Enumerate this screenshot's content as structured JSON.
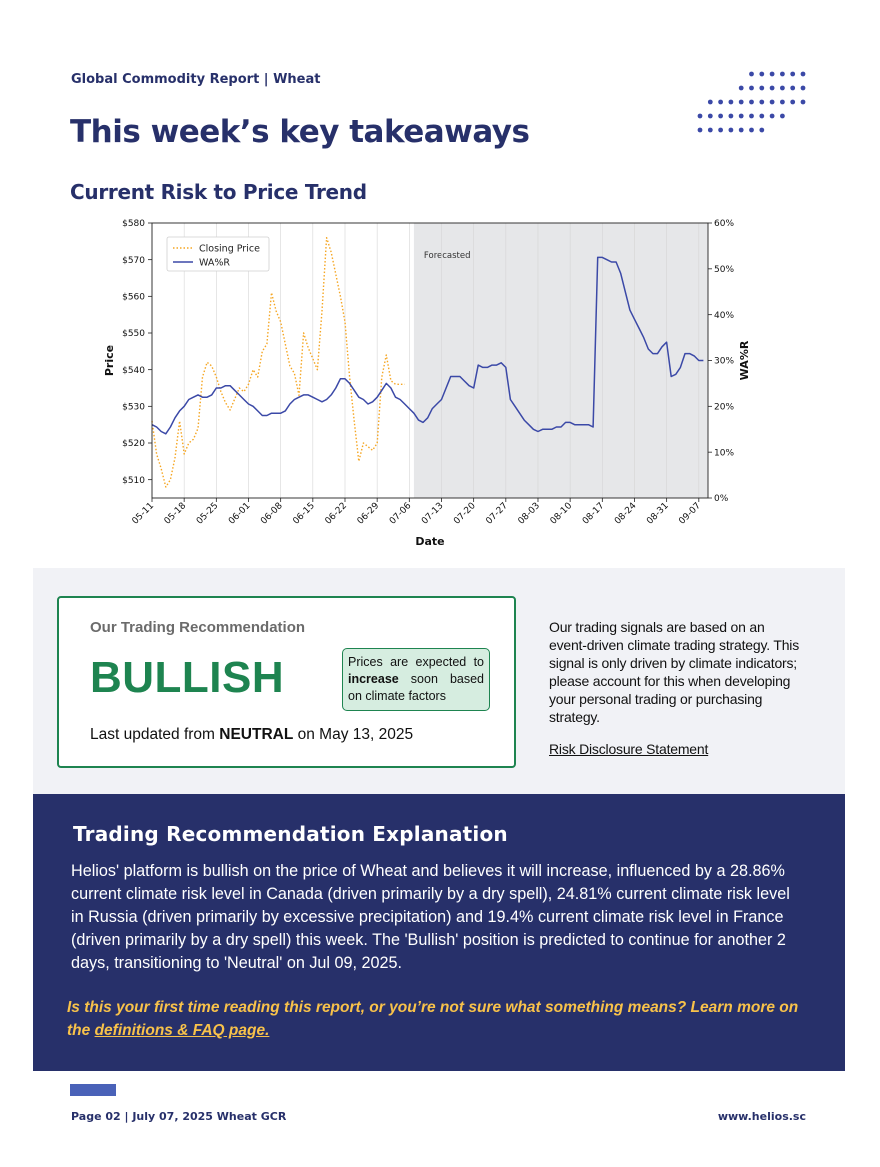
{
  "header": {
    "label": "Global Commodity Report | Wheat"
  },
  "page_title": "This week’s key takeaways",
  "section_title": "Current Risk to Price Trend",
  "colors": {
    "navy": "#27306a",
    "green": "#1e8450",
    "orange": "#f5a623",
    "line_blue": "#3b49a7",
    "forecast_bg": "#e6e7e9",
    "accent_yellow": "#f8c24a"
  },
  "chart_data": {
    "type": "line",
    "xlabel": "Date",
    "ylabel": "Price",
    "y2label": "WA%R",
    "ylim": [
      505,
      580
    ],
    "y2lim": [
      0,
      60
    ],
    "yticks": [
      "$510",
      "$520",
      "$530",
      "$540",
      "$550",
      "$560",
      "$570",
      "$580"
    ],
    "y2ticks": [
      "0%",
      "10%",
      "20%",
      "30%",
      "40%",
      "50%",
      "60%"
    ],
    "xticks": [
      "05-11",
      "05-18",
      "05-25",
      "06-01",
      "06-08",
      "06-15",
      "06-22",
      "06-29",
      "07-06",
      "07-13",
      "07-20",
      "07-27",
      "08-03",
      "08-10",
      "08-17",
      "08-24",
      "08-31",
      "09-07"
    ],
    "legend": {
      "placement": "top-left",
      "entries": [
        "Closing Price",
        "WA%R"
      ]
    },
    "forecast_label": "Forecasted",
    "forecast_start": "07-07",
    "x_start": "05-11",
    "x_end": "09-09",
    "series": [
      {
        "name": "Closing Price",
        "axis": "left",
        "style": "dotted",
        "color": "#f5a623",
        "points": [
          [
            "05-11",
            526
          ],
          [
            "05-12",
            517
          ],
          [
            "05-13",
            513
          ],
          [
            "05-14",
            508
          ],
          [
            "05-15",
            510
          ],
          [
            "05-16",
            516
          ],
          [
            "05-17",
            526
          ],
          [
            "05-18",
            517
          ],
          [
            "05-19",
            520
          ],
          [
            "05-20",
            521
          ],
          [
            "05-21",
            524
          ],
          [
            "05-22",
            538
          ],
          [
            "05-23",
            542
          ],
          [
            "05-24",
            541
          ],
          [
            "05-25",
            538
          ],
          [
            "05-26",
            534
          ],
          [
            "05-27",
            531
          ],
          [
            "05-28",
            529
          ],
          [
            "05-29",
            532
          ],
          [
            "05-30",
            535
          ],
          [
            "05-31",
            534
          ],
          [
            "06-01",
            536
          ],
          [
            "06-02",
            540
          ],
          [
            "06-03",
            538
          ],
          [
            "06-04",
            545
          ],
          [
            "06-05",
            547
          ],
          [
            "06-06",
            561
          ],
          [
            "06-07",
            556
          ],
          [
            "06-08",
            553
          ],
          [
            "06-09",
            547
          ],
          [
            "06-10",
            541
          ],
          [
            "06-11",
            539
          ],
          [
            "06-12",
            533
          ],
          [
            "06-13",
            550
          ],
          [
            "06-14",
            546
          ],
          [
            "06-15",
            543
          ],
          [
            "06-16",
            540
          ],
          [
            "06-17",
            556
          ],
          [
            "06-18",
            576
          ],
          [
            "06-19",
            572
          ],
          [
            "06-20",
            566
          ],
          [
            "06-21",
            560
          ],
          [
            "06-22",
            553
          ],
          [
            "06-23",
            538
          ],
          [
            "06-24",
            526
          ],
          [
            "06-25",
            515
          ],
          [
            "06-26",
            520
          ],
          [
            "06-27",
            519
          ],
          [
            "06-28",
            518
          ],
          [
            "06-29",
            520
          ],
          [
            "06-30",
            538
          ],
          [
            "07-01",
            544
          ],
          [
            "07-02",
            537
          ],
          [
            "07-03",
            536
          ],
          [
            "07-04",
            536
          ],
          [
            "07-05",
            536
          ]
        ]
      },
      {
        "name": "WA%R",
        "axis": "right",
        "style": "solid",
        "color": "#3b49a7",
        "points": [
          [
            "05-11",
            16
          ],
          [
            "05-12",
            15.5
          ],
          [
            "05-13",
            14.5
          ],
          [
            "05-14",
            14
          ],
          [
            "05-15",
            15.5
          ],
          [
            "05-16",
            17.5
          ],
          [
            "05-17",
            19
          ],
          [
            "05-18",
            20
          ],
          [
            "05-19",
            21.5
          ],
          [
            "05-20",
            22
          ],
          [
            "05-21",
            22.5
          ],
          [
            "05-22",
            22
          ],
          [
            "05-23",
            22
          ],
          [
            "05-24",
            22.5
          ],
          [
            "05-25",
            24
          ],
          [
            "05-26",
            24
          ],
          [
            "05-27",
            24.5
          ],
          [
            "05-28",
            24.5
          ],
          [
            "05-29",
            23.5
          ],
          [
            "05-30",
            22.5
          ],
          [
            "05-31",
            21.5
          ],
          [
            "06-01",
            20.5
          ],
          [
            "06-02",
            20
          ],
          [
            "06-03",
            19
          ],
          [
            "06-04",
            18
          ],
          [
            "06-05",
            18
          ],
          [
            "06-06",
            18.5
          ],
          [
            "06-07",
            18.5
          ],
          [
            "06-08",
            18.5
          ],
          [
            "06-09",
            19
          ],
          [
            "06-10",
            20.5
          ],
          [
            "06-11",
            21.5
          ],
          [
            "06-12",
            22
          ],
          [
            "06-13",
            22.5
          ],
          [
            "06-14",
            22.5
          ],
          [
            "06-15",
            22
          ],
          [
            "06-16",
            21.5
          ],
          [
            "06-17",
            21
          ],
          [
            "06-18",
            21.5
          ],
          [
            "06-19",
            22.5
          ],
          [
            "06-20",
            24
          ],
          [
            "06-21",
            26
          ],
          [
            "06-22",
            26
          ],
          [
            "06-23",
            25
          ],
          [
            "06-24",
            23.5
          ],
          [
            "06-25",
            22
          ],
          [
            "06-26",
            21.5
          ],
          [
            "06-27",
            20.5
          ],
          [
            "06-28",
            21
          ],
          [
            "06-29",
            22
          ],
          [
            "06-30",
            23.5
          ],
          [
            "07-01",
            25
          ],
          [
            "07-02",
            24
          ],
          [
            "07-03",
            22
          ],
          [
            "07-04",
            21.5
          ],
          [
            "07-05",
            20.5
          ],
          [
            "07-06",
            19.5
          ],
          [
            "07-07",
            18.5
          ],
          [
            "07-08",
            17
          ],
          [
            "07-09",
            16.5
          ],
          [
            "07-10",
            17.5
          ],
          [
            "07-11",
            19.5
          ],
          [
            "07-12",
            20.5
          ],
          [
            "07-13",
            21.5
          ],
          [
            "07-14",
            24
          ],
          [
            "07-15",
            26.5
          ],
          [
            "07-16",
            26.5
          ],
          [
            "07-17",
            26.5
          ],
          [
            "07-18",
            25.5
          ],
          [
            "07-19",
            24.5
          ],
          [
            "07-20",
            24
          ],
          [
            "07-21",
            29
          ],
          [
            "07-22",
            28.5
          ],
          [
            "07-23",
            28.5
          ],
          [
            "07-24",
            29
          ],
          [
            "07-25",
            29
          ],
          [
            "07-26",
            29.5
          ],
          [
            "07-27",
            28.5
          ],
          [
            "07-28",
            21.5
          ],
          [
            "07-29",
            20
          ],
          [
            "07-30",
            18.5
          ],
          [
            "07-31",
            17
          ],
          [
            "08-01",
            16
          ],
          [
            "08-02",
            15
          ],
          [
            "08-03",
            14.5
          ],
          [
            "08-04",
            15
          ],
          [
            "08-05",
            15
          ],
          [
            "08-06",
            15
          ],
          [
            "08-07",
            15.5
          ],
          [
            "08-08",
            15.5
          ],
          [
            "08-09",
            16.5
          ],
          [
            "08-10",
            16.5
          ],
          [
            "08-11",
            16
          ],
          [
            "08-12",
            16
          ],
          [
            "08-13",
            16
          ],
          [
            "08-14",
            16
          ],
          [
            "08-15",
            15.5
          ],
          [
            "08-16",
            52.5
          ],
          [
            "08-17",
            52.5
          ],
          [
            "08-18",
            52
          ],
          [
            "08-19",
            51.5
          ],
          [
            "08-20",
            51.5
          ],
          [
            "08-21",
            49
          ],
          [
            "08-22",
            45
          ],
          [
            "08-23",
            41
          ],
          [
            "08-24",
            39
          ],
          [
            "08-25",
            37
          ],
          [
            "08-26",
            35
          ],
          [
            "08-27",
            32.5
          ],
          [
            "08-28",
            31.5
          ],
          [
            "08-29",
            31.5
          ],
          [
            "08-30",
            33
          ],
          [
            "08-31",
            34
          ],
          [
            "09-01",
            26.5
          ],
          [
            "09-02",
            27
          ],
          [
            "09-03",
            28.5
          ],
          [
            "09-04",
            31.5
          ],
          [
            "09-05",
            31.5
          ],
          [
            "09-06",
            31
          ],
          [
            "09-07",
            30
          ],
          [
            "09-08",
            30
          ]
        ]
      }
    ]
  },
  "recommendation": {
    "heading": "Our Trading Recommendation",
    "value": "BULLISH",
    "note_pre": "Prices are expected to ",
    "note_bold": "increase",
    "note_post": " soon based on climate factors",
    "updated_pre": "Last updated from ",
    "updated_bold": "NEUTRAL",
    "updated_post": " on May 13, 2025"
  },
  "side": {
    "text": "Our trading signals are based on an event-driven climate trading strategy. This signal is only driven by climate indicators; please account for this when developing your personal trading or purchasing strategy.",
    "link": "Risk Disclosure Statement"
  },
  "explanation": {
    "title": "Trading Recommendation Explanation",
    "body": "Helios' platform is bullish on the price of Wheat and believes it will increase, influenced by a 28.86% current climate risk level in Canada (driven primarily by a dry spell), 24.81% current climate risk level in Russia (driven primarily by excessive precipitation) and 19.4% current climate risk level in France (driven primarily by a dry spell) this week. The 'Bullish' position is predicted to continue for another 2 days, transitioning to 'Neutral' on Jul 09, 2025.",
    "cta_pre": "Is this your first time reading this report, or you’re not sure what something means? Learn more on the ",
    "cta_link": "definitions & FAQ page."
  },
  "footer": {
    "left": "Page 02 | July 07, 2025 Wheat GCR",
    "right": "www.helios.sc"
  }
}
